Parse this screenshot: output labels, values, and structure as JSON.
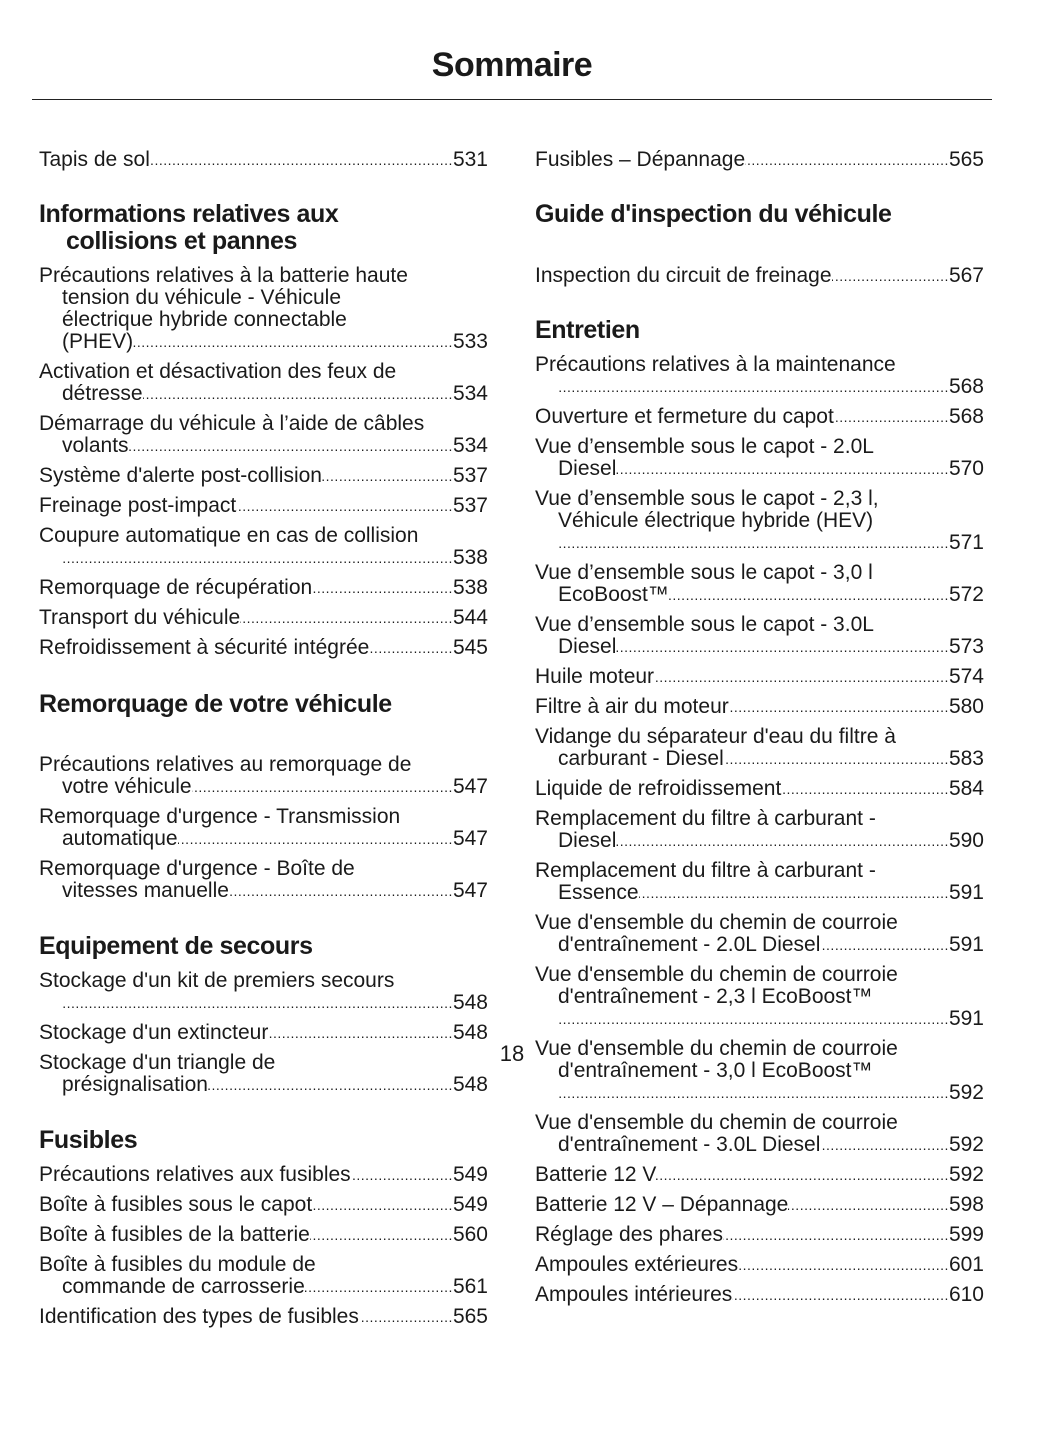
{
  "title": "Sommaire",
  "page_number": "18",
  "blocks": [
    {
      "entries": [
        {
          "lines": [
            "Tapis de sol"
          ],
          "page": "531"
        }
      ]
    },
    {
      "heading": [
        "Informations relatives aux",
        "collisions et pannes"
      ]
    },
    {
      "entries": [
        {
          "lines": [
            "Précautions relatives à la batterie haute",
            "tension du véhicule - Véhicule",
            "électrique hybride connectable",
            "(PHEV)"
          ],
          "page": "533"
        },
        {
          "lines": [
            "Activation et désactivation des feux de",
            "détresse"
          ],
          "page": "534"
        },
        {
          "lines": [
            "Démarrage du véhicule à l’aide de câbles",
            "volants"
          ],
          "page": "534"
        },
        {
          "lines": [
            "Système d'alerte post-collision"
          ],
          "page": "537"
        },
        {
          "lines": [
            "Freinage post-impact"
          ],
          "page": "537"
        },
        {
          "lines": [
            "Coupure automatique en cas de collision",
            ""
          ],
          "page": "538"
        },
        {
          "lines": [
            "Remorquage de récupération"
          ],
          "page": "538"
        },
        {
          "lines": [
            "Transport du véhicule"
          ],
          "page": "544"
        },
        {
          "lines": [
            "Refroidissement à sécurité intégrée"
          ],
          "page": "545"
        }
      ]
    },
    {
      "heading": [
        "Remorquage de votre véhicule"
      ]
    },
    {
      "entries": [
        {
          "lines": [
            "Précautions relatives au remorquage de",
            "votre véhicule"
          ],
          "page": "547"
        },
        {
          "lines": [
            "Remorquage d'urgence - Transmission",
            "automatique"
          ],
          "page": "547"
        },
        {
          "lines": [
            "Remorquage d'urgence - Boîte de",
            "vitesses manuelle"
          ],
          "page": "547"
        }
      ]
    },
    {
      "heading": [
        "Equipement de secours"
      ]
    },
    {
      "entries": [
        {
          "lines": [
            "Stockage d'un kit de premiers secours",
            ""
          ],
          "page": "548"
        },
        {
          "lines": [
            "Stockage d'un extincteur"
          ],
          "page": "548"
        },
        {
          "lines": [
            "Stockage d'un triangle de",
            "présignalisation"
          ],
          "page": "548"
        }
      ]
    },
    {
      "heading": [
        "Fusibles"
      ]
    },
    {
      "entries": [
        {
          "lines": [
            "Précautions relatives aux fusibles"
          ],
          "page": "549"
        },
        {
          "lines": [
            "Boîte à fusibles sous le capot"
          ],
          "page": "549"
        },
        {
          "lines": [
            "Boîte à fusibles de la batterie"
          ],
          "page": "560"
        },
        {
          "lines": [
            "Boîte à fusibles du module de",
            "commande de carrosserie"
          ],
          "page": "561"
        },
        {
          "lines": [
            "Identification des types de fusibles"
          ],
          "page": "565"
        }
      ]
    },
    {
      "entries": [
        {
          "lines": [
            "Fusibles – Dépannage"
          ],
          "page": "565"
        }
      ]
    },
    {
      "heading": [
        "Guide d'inspection du véhicule"
      ]
    },
    {
      "entries": [
        {
          "lines": [
            "Inspection du circuit de freinage"
          ],
          "page": "567"
        }
      ]
    },
    {
      "heading": [
        "Entretien"
      ]
    },
    {
      "entries": [
        {
          "lines": [
            "Précautions relatives à la maintenance",
            ""
          ],
          "page": "568"
        },
        {
          "lines": [
            "Ouverture et fermeture du capot"
          ],
          "page": "568"
        },
        {
          "lines": [
            "Vue d’ensemble sous le capot - 2.0L",
            "Diesel"
          ],
          "page": "570"
        },
        {
          "lines": [
            "Vue d’ensemble sous le capot - 2,3 l,",
            "Véhicule électrique hybride (HEV)",
            ""
          ],
          "page": "571"
        },
        {
          "lines": [
            "Vue d’ensemble sous le capot - 3,0 l",
            "EcoBoost™"
          ],
          "page": "572"
        },
        {
          "lines": [
            "Vue d’ensemble sous le capot - 3.0L",
            "Diesel"
          ],
          "page": "573"
        },
        {
          "lines": [
            "Huile moteur"
          ],
          "page": "574"
        },
        {
          "lines": [
            "Filtre à air du moteur"
          ],
          "page": "580"
        },
        {
          "lines": [
            "Vidange du séparateur d'eau du filtre à",
            "carburant - Diesel"
          ],
          "page": "583"
        },
        {
          "lines": [
            "Liquide de refroidissement"
          ],
          "page": "584"
        },
        {
          "lines": [
            "Remplacement du filtre à carburant -",
            "Diesel"
          ],
          "page": "590"
        },
        {
          "lines": [
            "Remplacement du filtre à carburant -",
            "Essence"
          ],
          "page": "591"
        },
        {
          "lines": [
            "Vue d'ensemble du chemin de courroie",
            "d'entraînement - 2.0L Diesel"
          ],
          "page": "591"
        },
        {
          "lines": [
            "Vue d'ensemble du chemin de courroie",
            "d'entraînement - 2,3 l EcoBoost™",
            ""
          ],
          "page": "591"
        },
        {
          "lines": [
            "Vue d'ensemble du chemin de courroie",
            "d'entraînement - 3,0 l EcoBoost™",
            ""
          ],
          "page": "592"
        },
        {
          "lines": [
            "Vue d'ensemble du chemin de courroie",
            "d'entraînement - 3.0L Diesel"
          ],
          "page": "592"
        },
        {
          "lines": [
            "Batterie 12 V"
          ],
          "page": "592"
        },
        {
          "lines": [
            "Batterie 12 V – Dépannage"
          ],
          "page": "598"
        },
        {
          "lines": [
            "Réglage des phares"
          ],
          "page": "599"
        },
        {
          "lines": [
            "Ampoules extérieures"
          ],
          "page": "601"
        },
        {
          "lines": [
            "Ampoules intérieures"
          ],
          "page": "610"
        }
      ]
    }
  ]
}
